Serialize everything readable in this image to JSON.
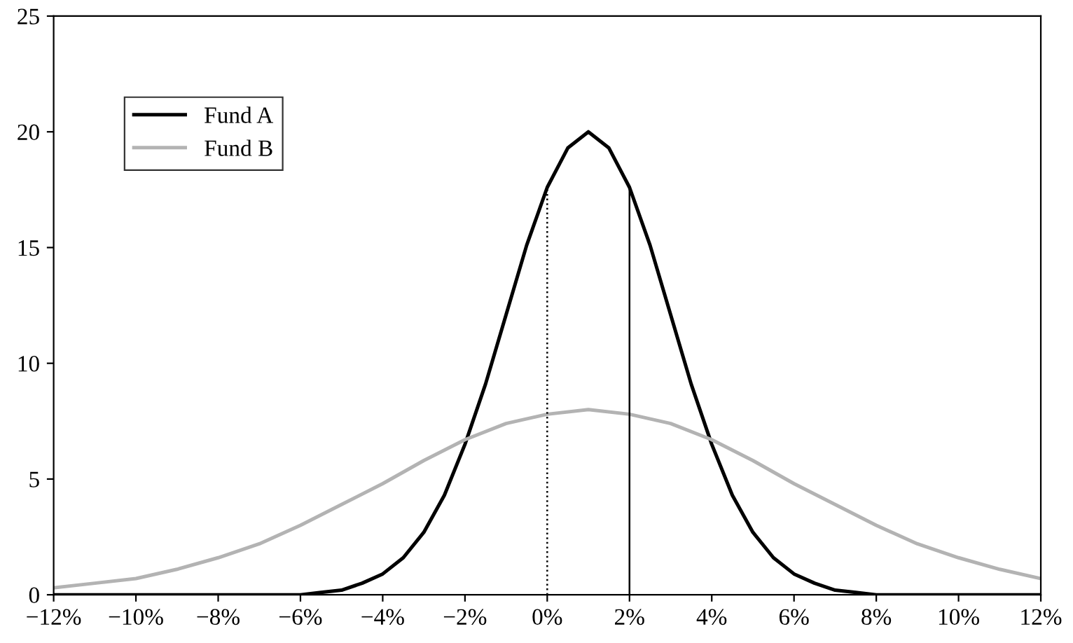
{
  "chart_data": {
    "type": "line",
    "xlim": [
      -12,
      12
    ],
    "ylim": [
      0,
      25
    ],
    "xticks": [
      {
        "value": -12,
        "label": "−12%"
      },
      {
        "value": -10,
        "label": "−10%"
      },
      {
        "value": -8,
        "label": "−8%"
      },
      {
        "value": -6,
        "label": "−6%"
      },
      {
        "value": -4,
        "label": "−4%"
      },
      {
        "value": -2,
        "label": "−2%"
      },
      {
        "value": 0,
        "label": "0%"
      },
      {
        "value": 2,
        "label": "2%"
      },
      {
        "value": 4,
        "label": "4%"
      },
      {
        "value": 6,
        "label": "6%"
      },
      {
        "value": 8,
        "label": "8%"
      },
      {
        "value": 10,
        "label": "10%"
      },
      {
        "value": 12,
        "label": "12%"
      }
    ],
    "yticks": [
      0,
      5,
      10,
      15,
      20,
      25
    ],
    "grid": false,
    "legend": "top left",
    "marker": "none",
    "series": [
      {
        "name": "Fund A",
        "color": "#000000",
        "x": [
          -12,
          -11,
          -10,
          -9,
          -8,
          -7,
          -6,
          -5.5,
          -5,
          -4.5,
          -4,
          -3.5,
          -3,
          -2.5,
          -2,
          -1.5,
          -1,
          -0.5,
          0,
          0.5,
          1,
          1.5,
          2,
          2.5,
          3,
          3.5,
          4,
          4.5,
          5,
          5.5,
          6,
          6.5,
          7,
          7.5,
          8,
          9,
          10,
          11,
          12
        ],
        "values": [
          0,
          0,
          0,
          0,
          0,
          0,
          0.0,
          0.1,
          0.2,
          0.5,
          0.9,
          1.6,
          2.7,
          4.3,
          6.5,
          9.1,
          12.1,
          15.1,
          17.6,
          19.3,
          20.0,
          19.3,
          17.6,
          15.1,
          12.1,
          9.1,
          6.5,
          4.3,
          2.7,
          1.6,
          0.9,
          0.5,
          0.2,
          0.1,
          0.0,
          0,
          0,
          0,
          0
        ]
      },
      {
        "name": "Fund B",
        "color": "#b3b3b3",
        "x": [
          -12,
          -11,
          -10,
          -9,
          -8,
          -7,
          -6,
          -5,
          -4,
          -3,
          -2,
          -1,
          0,
          1,
          2,
          3,
          4,
          5,
          6,
          7,
          8,
          9,
          10,
          11,
          12
        ],
        "values": [
          0.3,
          0.5,
          0.7,
          1.1,
          1.6,
          2.2,
          3.0,
          3.9,
          4.8,
          5.8,
          6.7,
          7.4,
          7.8,
          8.0,
          7.8,
          7.4,
          6.7,
          5.8,
          4.8,
          3.9,
          3.0,
          2.2,
          1.6,
          1.1,
          0.7
        ]
      },
      {
        "color": "#000000",
        "line_style": "dotted",
        "x": [
          0,
          0
        ],
        "values": [
          0,
          17.6
        ]
      },
      {
        "color": "#000000",
        "line_style": "solid",
        "x": [
          2,
          2
        ],
        "values": [
          0,
          17.6
        ]
      }
    ]
  }
}
